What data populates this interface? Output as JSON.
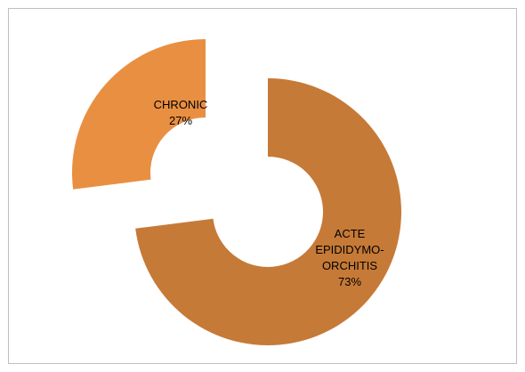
{
  "chart_data": {
    "type": "pie",
    "style": "doughnut, exploded",
    "slices": [
      {
        "label_lines": [
          "ACTE",
          "EPIDIDYMO-",
          "ORCHITIS"
        ],
        "percent_text": "73%",
        "value": 73,
        "color": "#C67A37"
      },
      {
        "label_lines": [
          "CHRONIC"
        ],
        "percent_text": "27%",
        "value": 27,
        "color": "#E98F42"
      }
    ],
    "title": "",
    "legend": "none"
  }
}
